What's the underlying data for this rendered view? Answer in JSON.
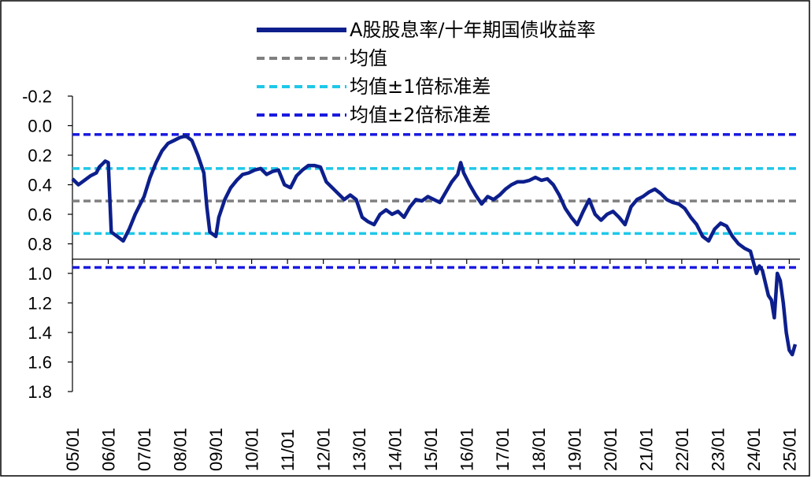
{
  "colors": {
    "series": "#0d1f8c",
    "mean": "#808080",
    "band1": "#1ec8e8",
    "band2": "#1a1ae0",
    "axis": "#000000",
    "frame": "#000000"
  },
  "chart_data": {
    "type": "line",
    "title": "",
    "xlabel": "",
    "ylabel": "",
    "y_inverted": true,
    "ylim": [
      -0.2,
      1.8
    ],
    "yticks": [
      "-0.2",
      "0.0",
      "0.2",
      "0.4",
      "0.6",
      "0.8",
      "1.0",
      "1.2",
      "1.4",
      "1.6",
      "1.8"
    ],
    "ytick_values": [
      -0.2,
      0.0,
      0.2,
      0.4,
      0.6,
      0.8,
      1.0,
      1.2,
      1.4,
      1.6,
      1.8
    ],
    "xlim": [
      "2005-01",
      "2025-03"
    ],
    "xticks": [
      "05/01",
      "06/01",
      "07/01",
      "08/01",
      "09/01",
      "10/01",
      "11/01",
      "12/01",
      "13/01",
      "14/01",
      "15/01",
      "16/01",
      "17/01",
      "18/01",
      "19/01",
      "20/01",
      "21/01",
      "22/01",
      "23/01",
      "24/01",
      "25/01"
    ],
    "xtick_dates": [
      "2005-01",
      "2006-01",
      "2007-01",
      "2008-01",
      "2009-01",
      "2010-01",
      "2011-01",
      "2012-01",
      "2013-01",
      "2014-01",
      "2015-01",
      "2016-01",
      "2017-01",
      "2018-01",
      "2019-01",
      "2020-01",
      "2021-01",
      "2022-01",
      "2023-01",
      "2024-01",
      "2025-01"
    ],
    "grid": false,
    "legend_position": "top",
    "legend": [
      {
        "label": "A股股息率/十年期国债收益率",
        "style": "solid",
        "color_key": "series"
      },
      {
        "label": "均值",
        "style": "dashed",
        "color_key": "mean"
      },
      {
        "label": "均值±1倍标准差",
        "style": "dashed",
        "color_key": "band1"
      },
      {
        "label": "均值±2倍标准差",
        "style": "dashed",
        "color_key": "band2"
      }
    ],
    "reference_lines": {
      "mean": 0.51,
      "plus_1sd": 0.73,
      "minus_1sd": 0.29,
      "plus_2sd": 0.96,
      "minus_2sd": 0.06
    },
    "series": [
      {
        "name": "A股股息率/十年期国债收益率",
        "points": [
          [
            "2005-01",
            0.36
          ],
          [
            "2005-03",
            0.4
          ],
          [
            "2005-05",
            0.37
          ],
          [
            "2005-07",
            0.34
          ],
          [
            "2005-09",
            0.32
          ],
          [
            "2005-10",
            0.28
          ],
          [
            "2005-11",
            0.26
          ],
          [
            "2005-12",
            0.24
          ],
          [
            "2006-01",
            0.25
          ],
          [
            "2006-02",
            0.72
          ],
          [
            "2006-04",
            0.75
          ],
          [
            "2006-06",
            0.78
          ],
          [
            "2006-08",
            0.7
          ],
          [
            "2006-10",
            0.6
          ],
          [
            "2006-12",
            0.52
          ],
          [
            "2007-01",
            0.48
          ],
          [
            "2007-03",
            0.35
          ],
          [
            "2007-05",
            0.25
          ],
          [
            "2007-07",
            0.17
          ],
          [
            "2007-09",
            0.12
          ],
          [
            "2007-11",
            0.1
          ],
          [
            "2008-01",
            0.08
          ],
          [
            "2008-03",
            0.07
          ],
          [
            "2008-05",
            0.1
          ],
          [
            "2008-07",
            0.2
          ],
          [
            "2008-09",
            0.32
          ],
          [
            "2008-10",
            0.55
          ],
          [
            "2008-11",
            0.72
          ],
          [
            "2009-01",
            0.75
          ],
          [
            "2009-02",
            0.62
          ],
          [
            "2009-04",
            0.5
          ],
          [
            "2009-06",
            0.42
          ],
          [
            "2009-08",
            0.37
          ],
          [
            "2009-10",
            0.33
          ],
          [
            "2009-12",
            0.32
          ],
          [
            "2010-02",
            0.3
          ],
          [
            "2010-04",
            0.29
          ],
          [
            "2010-06",
            0.33
          ],
          [
            "2010-08",
            0.31
          ],
          [
            "2010-10",
            0.3
          ],
          [
            "2010-12",
            0.4
          ],
          [
            "2011-02",
            0.42
          ],
          [
            "2011-04",
            0.34
          ],
          [
            "2011-06",
            0.3
          ],
          [
            "2011-08",
            0.27
          ],
          [
            "2011-10",
            0.27
          ],
          [
            "2011-12",
            0.28
          ],
          [
            "2012-02",
            0.38
          ],
          [
            "2012-04",
            0.42
          ],
          [
            "2012-06",
            0.46
          ],
          [
            "2012-08",
            0.5
          ],
          [
            "2012-10",
            0.47
          ],
          [
            "2012-12",
            0.5
          ],
          [
            "2013-02",
            0.62
          ],
          [
            "2013-04",
            0.65
          ],
          [
            "2013-06",
            0.67
          ],
          [
            "2013-08",
            0.6
          ],
          [
            "2013-10",
            0.57
          ],
          [
            "2013-12",
            0.6
          ],
          [
            "2014-02",
            0.58
          ],
          [
            "2014-04",
            0.62
          ],
          [
            "2014-06",
            0.55
          ],
          [
            "2014-08",
            0.5
          ],
          [
            "2014-10",
            0.51
          ],
          [
            "2014-12",
            0.48
          ],
          [
            "2015-02",
            0.5
          ],
          [
            "2015-04",
            0.52
          ],
          [
            "2015-06",
            0.45
          ],
          [
            "2015-08",
            0.38
          ],
          [
            "2015-10",
            0.33
          ],
          [
            "2015-11",
            0.25
          ],
          [
            "2015-12",
            0.32
          ],
          [
            "2016-02",
            0.4
          ],
          [
            "2016-04",
            0.47
          ],
          [
            "2016-06",
            0.53
          ],
          [
            "2016-08",
            0.48
          ],
          [
            "2016-10",
            0.5
          ],
          [
            "2016-12",
            0.47
          ],
          [
            "2017-02",
            0.43
          ],
          [
            "2017-04",
            0.4
          ],
          [
            "2017-06",
            0.38
          ],
          [
            "2017-08",
            0.38
          ],
          [
            "2017-10",
            0.37
          ],
          [
            "2017-12",
            0.35
          ],
          [
            "2018-02",
            0.37
          ],
          [
            "2018-04",
            0.36
          ],
          [
            "2018-06",
            0.4
          ],
          [
            "2018-08",
            0.47
          ],
          [
            "2018-10",
            0.56
          ],
          [
            "2018-12",
            0.62
          ],
          [
            "2019-02",
            0.67
          ],
          [
            "2019-04",
            0.58
          ],
          [
            "2019-06",
            0.5
          ],
          [
            "2019-08",
            0.6
          ],
          [
            "2019-10",
            0.64
          ],
          [
            "2019-12",
            0.6
          ],
          [
            "2020-02",
            0.58
          ],
          [
            "2020-04",
            0.62
          ],
          [
            "2020-06",
            0.67
          ],
          [
            "2020-08",
            0.55
          ],
          [
            "2020-10",
            0.5
          ],
          [
            "2020-12",
            0.48
          ],
          [
            "2021-02",
            0.45
          ],
          [
            "2021-04",
            0.43
          ],
          [
            "2021-06",
            0.46
          ],
          [
            "2021-08",
            0.5
          ],
          [
            "2021-10",
            0.52
          ],
          [
            "2021-12",
            0.53
          ],
          [
            "2022-02",
            0.56
          ],
          [
            "2022-04",
            0.62
          ],
          [
            "2022-06",
            0.67
          ],
          [
            "2022-08",
            0.75
          ],
          [
            "2022-10",
            0.78
          ],
          [
            "2022-12",
            0.7
          ],
          [
            "2023-02",
            0.66
          ],
          [
            "2023-04",
            0.68
          ],
          [
            "2023-06",
            0.75
          ],
          [
            "2023-08",
            0.8
          ],
          [
            "2023-10",
            0.83
          ],
          [
            "2023-12",
            0.85
          ],
          [
            "2024-02",
            1.0
          ],
          [
            "2024-03",
            0.95
          ],
          [
            "2024-04",
            0.98
          ],
          [
            "2024-06",
            1.15
          ],
          [
            "2024-07",
            1.18
          ],
          [
            "2024-08",
            1.3
          ],
          [
            "2024-09",
            1.0
          ],
          [
            "2024-10",
            1.05
          ],
          [
            "2024-11",
            1.2
          ],
          [
            "2024-12",
            1.4
          ],
          [
            "2025-01",
            1.52
          ],
          [
            "2025-02",
            1.55
          ],
          [
            "2025-03",
            1.48
          ]
        ]
      }
    ]
  }
}
